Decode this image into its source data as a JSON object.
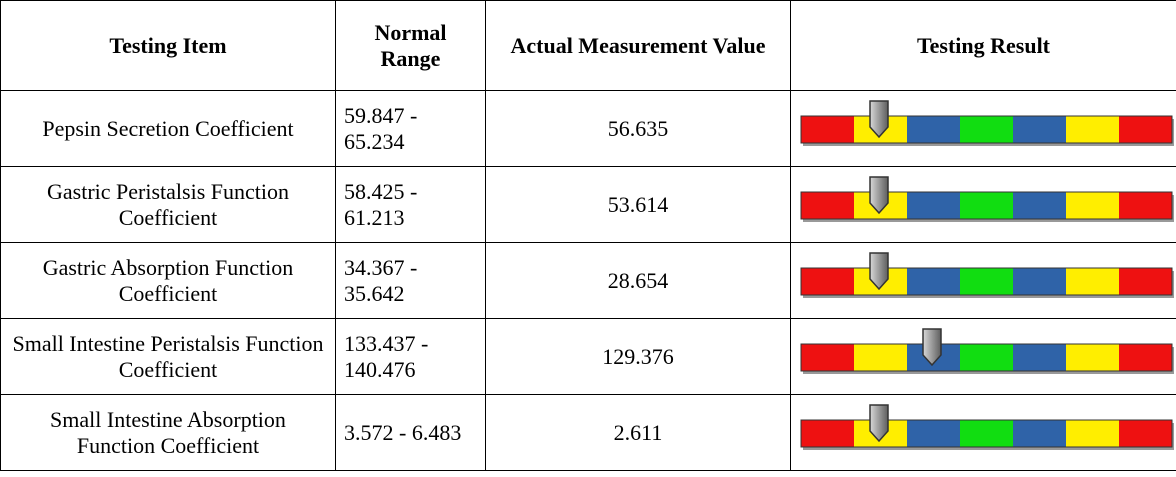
{
  "table": {
    "header": [
      "Testing Item",
      "Normal Range",
      "Actual Measurement Value",
      "Testing Result"
    ],
    "rows": [
      [
        "Pepsin Secretion Coefficient",
        "59.847 - 65.234",
        "56.635"
      ],
      [
        "Gastric Peristalsis Function Coefficient",
        "58.425 - 61.213",
        "53.614"
      ],
      [
        "Gastric Absorption Function Coefficient",
        "34.367 - 35.642",
        "28.654"
      ],
      [
        "Small Intestine Peristalsis Function Coefficient",
        "133.437 - 140.476",
        "129.376"
      ],
      [
        "Small Intestine Absorption Function Coefficient",
        "3.572 - 6.483",
        "2.611"
      ]
    ]
  }
}
